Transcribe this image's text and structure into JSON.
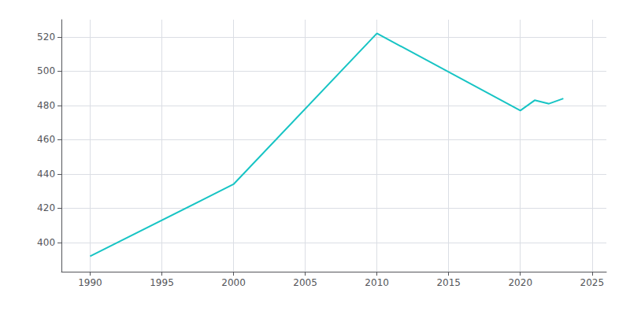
{
  "chart_data": {
    "type": "line",
    "x": [
      1990,
      2000,
      2010,
      2020,
      2021,
      2022,
      2023
    ],
    "values": [
      392,
      434,
      522,
      477,
      483,
      481,
      484
    ],
    "color": "#17c4c4",
    "xlim": [
      1988,
      2026
    ],
    "ylim": [
      383,
      530
    ],
    "xticks": [
      1990,
      1995,
      2000,
      2005,
      2010,
      2015,
      2020,
      2025
    ],
    "yticks": [
      400,
      420,
      440,
      460,
      480,
      500,
      520
    ],
    "grid": true
  }
}
